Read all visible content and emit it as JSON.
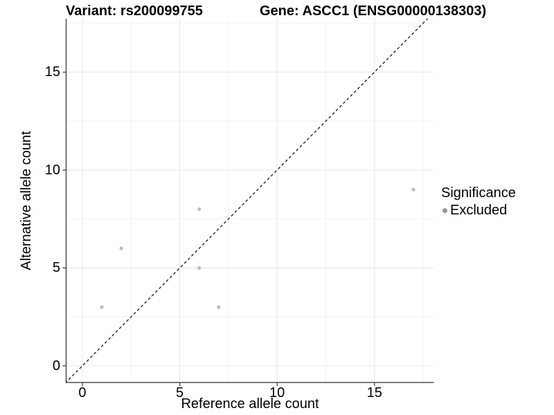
{
  "figure": {
    "title_left": "Variant: rs200099755",
    "title_right": "Gene: ASCC1 (ENSG00000138303)"
  },
  "chart_data": {
    "type": "scatter",
    "title": "Variant: rs200099755  |  Gene: ASCC1 (ENSG00000138303)",
    "xlabel": "Reference allele count",
    "ylabel": "Alternative allele count",
    "x_ticks": [
      0,
      5,
      10,
      15
    ],
    "y_ticks": [
      0,
      5,
      10,
      15
    ],
    "x_minor_ticks": [
      2.5,
      7.5,
      12.5,
      17.5
    ],
    "y_minor_ticks": [
      2.5,
      7.5,
      12.5,
      17.5
    ],
    "xlim": [
      -0.835,
      18.05
    ],
    "ylim": [
      -0.85,
      17.73
    ],
    "grid": "major+minor",
    "legend_position": "right",
    "series": [
      {
        "name": "Excluded",
        "points": [
          [
            1,
            3
          ],
          [
            2,
            6
          ],
          [
            6,
            5
          ],
          [
            6,
            8
          ],
          [
            7,
            3
          ],
          [
            17,
            9
          ]
        ],
        "color": "#bdbdbd",
        "point_radius": 2.6
      }
    ],
    "reference_line": {
      "equation": "y = x",
      "style": "dashed",
      "color": "#111111"
    },
    "legend": {
      "title": "Significance",
      "entries": [
        {
          "label": "Excluded",
          "color": "#969696"
        }
      ]
    }
  },
  "colors": {
    "background": "#ffffff",
    "grid_major": "#e6e6e6",
    "grid_minor": "#f2f2f2",
    "axis_line": "#2f2f2f",
    "text": "#000000"
  }
}
